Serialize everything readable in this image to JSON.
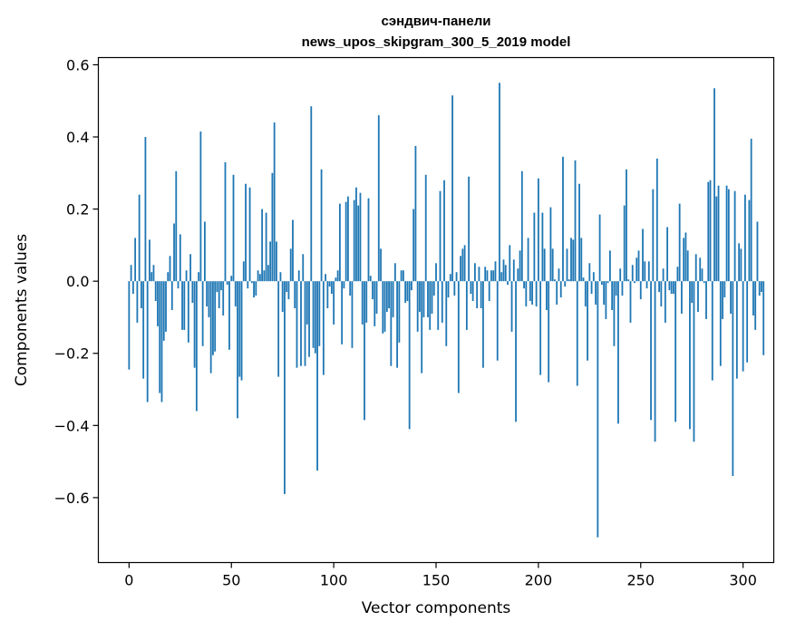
{
  "chart_data": {
    "type": "bar",
    "title_lines": [
      "сэндвич-панели",
      "news_upos_skipgram_300_5_2019 model"
    ],
    "xlabel": "Vector components",
    "ylabel": "Components values",
    "xlim": [
      -15,
      315
    ],
    "ylim": [
      -0.78,
      0.62
    ],
    "xticks": [
      0,
      50,
      100,
      150,
      200,
      250,
      300
    ],
    "xtick_labels": [
      "0",
      "50",
      "100",
      "150",
      "200",
      "250",
      "300"
    ],
    "yticks": [
      -0.6,
      -0.4,
      -0.2,
      0.0,
      0.2,
      0.4,
      0.6
    ],
    "ytick_labels": [
      "−0.6",
      "−0.4",
      "−0.2",
      "0.0",
      "0.2",
      "0.4",
      "0.6"
    ],
    "bar_color": "#1f77b4",
    "bar_width": 0.8,
    "series": [
      {
        "name": "components",
        "values": [
          -0.245,
          0.045,
          -0.035,
          0.12,
          -0.115,
          0.24,
          -0.075,
          -0.27,
          0.4,
          -0.335,
          0.115,
          0.025,
          0.045,
          -0.055,
          -0.125,
          -0.31,
          -0.335,
          -0.165,
          -0.14,
          0.025,
          0.07,
          -0.08,
          0.16,
          0.305,
          -0.02,
          0.13,
          -0.135,
          -0.135,
          0.03,
          -0.17,
          0.075,
          -0.06,
          -0.24,
          -0.36,
          0.025,
          0.415,
          -0.18,
          0.165,
          -0.07,
          -0.1,
          -0.255,
          -0.205,
          -0.195,
          -0.03,
          -0.075,
          -0.025,
          -0.095,
          0.33,
          -0.01,
          -0.19,
          0.015,
          0.295,
          -0.07,
          -0.38,
          -0.265,
          -0.275,
          0.055,
          0.27,
          -0.02,
          0.26,
          -0.005,
          -0.045,
          -0.04,
          0.03,
          0.02,
          0.2,
          0.03,
          0.19,
          0.045,
          0.11,
          0.3,
          0.44,
          0.11,
          -0.265,
          0.025,
          -0.085,
          -0.59,
          -0.03,
          -0.05,
          0.09,
          0.17,
          -0.075,
          -0.24,
          0.03,
          -0.235,
          0.075,
          -0.235,
          -0.12,
          -0.21,
          0.485,
          -0.185,
          -0.2,
          -0.525,
          -0.18,
          0.31,
          -0.26,
          0.02,
          -0.075,
          -0.015,
          -0.035,
          -0.12,
          0.01,
          0.03,
          0.215,
          -0.175,
          -0.02,
          0.22,
          0.235,
          -0.04,
          -0.185,
          0.225,
          0.26,
          0.21,
          0.245,
          -0.12,
          -0.385,
          -0.115,
          0.23,
          0.015,
          -0.05,
          -0.125,
          -0.09,
          0.46,
          0.09,
          -0.145,
          -0.14,
          -0.085,
          -0.075,
          -0.235,
          -0.1,
          0.05,
          -0.24,
          -0.17,
          0.03,
          0.03,
          -0.06,
          -0.055,
          -0.41,
          -0.025,
          0.2,
          0.375,
          -0.14,
          -0.085,
          -0.255,
          -0.1,
          0.295,
          -0.1,
          -0.135,
          -0.09,
          -0.04,
          0.05,
          -0.135,
          0.25,
          -0.115,
          0.28,
          -0.18,
          -0.045,
          0.02,
          0.515,
          -0.04,
          0.025,
          -0.31,
          0.07,
          0.09,
          0.1,
          -0.135,
          0.29,
          -0.035,
          -0.055,
          0.05,
          -0.075,
          0.04,
          -0.075,
          -0.24,
          0.04,
          0.03,
          -0.055,
          0.03,
          0.03,
          0.055,
          -0.22,
          0.55,
          0.025,
          0.06,
          0.045,
          -0.01,
          0.1,
          -0.14,
          0.06,
          -0.39,
          0.035,
          0.085,
          0.305,
          -0.02,
          -0.07,
          0.12,
          -0.055,
          -0.065,
          0.19,
          -0.07,
          0.285,
          -0.26,
          0.19,
          0.09,
          -0.08,
          -0.28,
          0.205,
          0.09,
          0.005,
          -0.065,
          0.035,
          -0.045,
          0.345,
          -0.015,
          0.09,
          0.005,
          0.12,
          0.115,
          0.335,
          -0.29,
          0.27,
          0.12,
          0.01,
          -0.07,
          -0.22,
          0.05,
          -0.035,
          0.025,
          -0.065,
          -0.71,
          0.185,
          -0.01,
          -0.065,
          -0.105,
          -0.005,
          0.085,
          -0.08,
          -0.18,
          -0.04,
          -0.395,
          0.035,
          -0.04,
          0.21,
          0.31,
          0.005,
          -0.115,
          0.045,
          -0.005,
          0.065,
          0.085,
          -0.05,
          0.145,
          0.055,
          -0.02,
          0.055,
          -0.385,
          0.255,
          -0.445,
          0.34,
          -0.03,
          -0.07,
          0.035,
          -0.115,
          0.15,
          -0.025,
          -0.035,
          -0.035,
          -0.39,
          0.04,
          0.215,
          -0.09,
          0.12,
          0.135,
          0.085,
          -0.41,
          -0.06,
          -0.445,
          0.075,
          -0.085,
          0.065,
          0.035,
          -0.005,
          -0.105,
          0.275,
          0.28,
          -0.275,
          0.535,
          0.235,
          0.265,
          -0.235,
          -0.105,
          -0.045,
          0.265,
          0.255,
          -0.09,
          -0.54,
          0.25,
          -0.27,
          0.105,
          0.09,
          -0.25,
          0.24,
          -0.225,
          0.225,
          0.395,
          -0.095,
          -0.135,
          0.165,
          -0.04,
          -0.03,
          -0.205
        ]
      }
    ]
  }
}
